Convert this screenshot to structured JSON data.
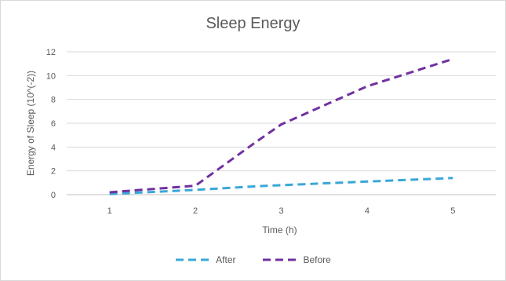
{
  "chart_data": {
    "type": "line",
    "title": "Sleep Energy",
    "xlabel": "Time (h)",
    "ylabel": "Energy of Sleep (10^(-2))",
    "x": [
      1,
      2,
      2.7,
      3,
      4,
      5
    ],
    "x_ticks": [
      "1",
      "2",
      "3",
      "4",
      "5"
    ],
    "y_ticks": [
      "0",
      "2",
      "4",
      "6",
      "8",
      "10",
      "12"
    ],
    "xlim": [
      0.5,
      5.5
    ],
    "ylim": [
      0,
      12
    ],
    "grid": "horizontal",
    "legend_position": "bottom",
    "series": [
      {
        "name": "After",
        "color": "#3aa7d8",
        "dash": "dashed",
        "values": [
          0.05,
          0.4,
          0.7,
          0.8,
          1.1,
          1.4
        ]
      },
      {
        "name": "Before",
        "color": "#7030a0",
        "dash": "dashed",
        "values": [
          0.2,
          0.75,
          4.4,
          5.9,
          9.1,
          11.4
        ]
      }
    ]
  }
}
